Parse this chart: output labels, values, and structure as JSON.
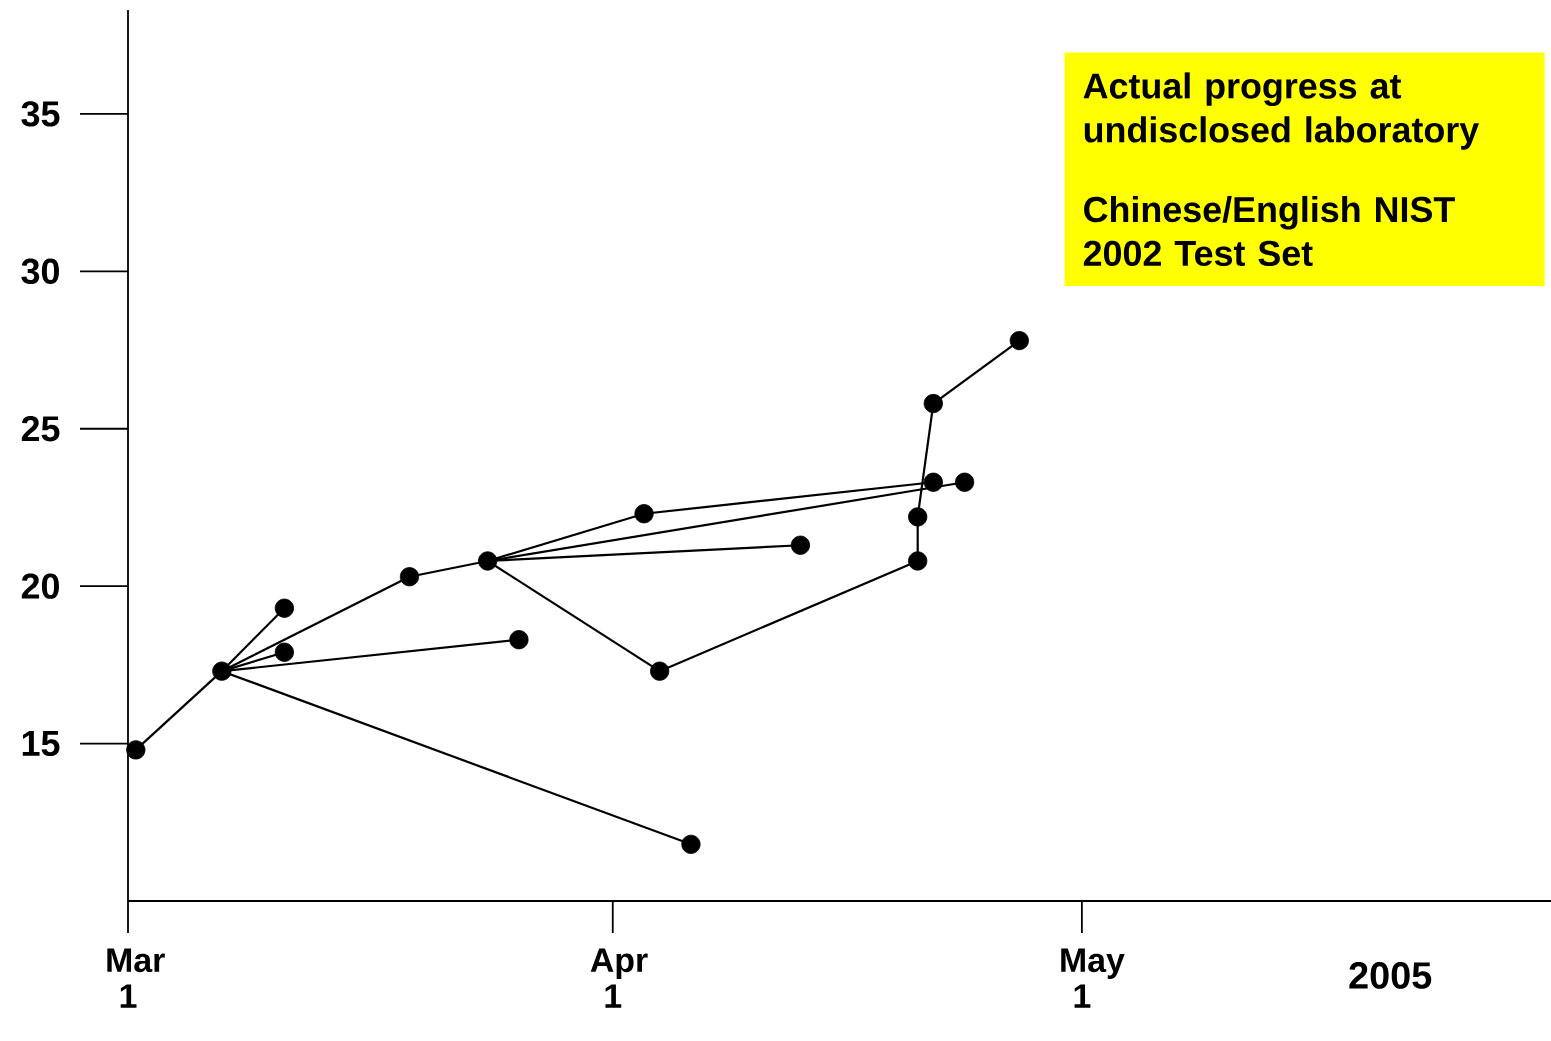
{
  "chart_data": {
    "type": "line",
    "xlabel": "2005",
    "annotations": [
      "Actual progress at undisclosed laboratory",
      "Chinese/English NIST 2002 Test Set"
    ],
    "xlim": [
      "2005-03-01",
      "2005-05-31"
    ],
    "ylim": [
      10,
      38.3
    ],
    "yticks": [
      15,
      20,
      25,
      30,
      35
    ],
    "xticks": [
      {
        "value": "2005-03-01",
        "label": "Mar 1"
      },
      {
        "value": "2005-04-01",
        "label": "Apr 1"
      },
      {
        "value": "2005-05-01",
        "label": "May 1"
      }
    ],
    "series": [
      {
        "type": "scatter",
        "marker": "circle",
        "color": "#000000",
        "x": [
          "2005-03-01T12:00",
          "2005-03-07",
          "2005-03-11",
          "2005-03-11",
          "2005-03-19",
          "2005-03-24",
          "2005-03-26",
          "2005-04-06",
          "2005-04-03",
          "2005-04-04",
          "2005-04-13",
          "2005-04-20T12:00",
          "2005-04-20T12:00",
          "2005-04-21T12:00",
          "2005-04-21T12:00",
          "2005-04-23T12:00",
          "2005-04-27"
        ],
        "values": [
          14.8,
          17.3,
          19.3,
          17.9,
          20.3,
          20.8,
          18.3,
          11.8,
          22.3,
          17.3,
          21.3,
          20.8,
          22.2,
          23.3,
          25.8,
          23.3,
          27.8
        ]
      },
      {
        "marker": "none",
        "color": "#000000",
        "x": [
          "2005-03-01T12:00",
          "2005-03-07"
        ],
        "values": [
          14.8,
          17.3
        ]
      },
      {
        "type": "line",
        "marker": "none",
        "color": "#000000",
        "x": [
          "2005-03-07",
          "2005-03-11"
        ],
        "values": [
          17.3,
          19.3
        ]
      },
      {
        "type": "line",
        "marker": "none",
        "color": "#000000",
        "x": [
          "2005-03-07",
          "2005-03-11"
        ],
        "values": [
          17.3,
          17.9
        ]
      },
      {
        "type": "line",
        "marker": "none",
        "color": "#000000",
        "x": [
          "2005-03-07",
          "2005-03-19"
        ],
        "values": [
          17.3,
          20.3
        ]
      },
      {
        "type": "line",
        "marker": "none",
        "color": "#000000",
        "x": [
          "2005-03-07",
          "2005-03-26"
        ],
        "values": [
          17.3,
          18.3
        ]
      },
      {
        "type": "line",
        "marker": "none",
        "color": "#000000",
        "x": [
          "2005-03-07",
          "2005-04-06"
        ],
        "values": [
          17.3,
          11.8
        ]
      },
      {
        "type": "line",
        "marker": "none",
        "color": "#000000",
        "x": [
          "2005-03-19",
          "2005-03-24"
        ],
        "values": [
          20.3,
          20.8
        ]
      },
      {
        "type": "line",
        "marker": "none",
        "color": "#000000",
        "x": [
          "2005-03-24",
          "2005-04-03"
        ],
        "values": [
          20.8,
          22.3
        ]
      },
      {
        "type": "line",
        "marker": "none",
        "color": "#000000",
        "x": [
          "2005-04-03",
          "2005-04-21T12:00"
        ],
        "values": [
          22.3,
          23.3
        ]
      },
      {
        "type": "line",
        "marker": "none",
        "color": "#000000",
        "x": [
          "2005-03-24",
          "2005-04-23T12:00"
        ],
        "values": [
          20.8,
          23.3
        ]
      },
      {
        "type": "line",
        "marker": "none",
        "color": "#000000",
        "x": [
          "2005-03-24",
          "2005-04-13"
        ],
        "values": [
          20.8,
          21.3
        ]
      },
      {
        "type": "line",
        "marker": "none",
        "color": "#000000",
        "x": [
          "2005-03-24",
          "2005-04-04"
        ],
        "values": [
          20.8,
          17.3
        ]
      },
      {
        "type": "line",
        "marker": "none",
        "color": "#000000",
        "x": [
          "2005-04-04",
          "2005-04-20T12:00"
        ],
        "values": [
          17.3,
          20.8
        ]
      },
      {
        "type": "line",
        "marker": "none",
        "color": "#000000",
        "x": [
          "2005-04-20T12:00",
          "2005-04-20T12:00"
        ],
        "values": [
          20.8,
          22.2
        ]
      },
      {
        "type": "line",
        "marker": "none",
        "color": "#000000",
        "x": [
          "2005-04-20T12:00",
          "2005-04-21T12:00"
        ],
        "values": [
          22.2,
          25.8
        ]
      },
      {
        "type": "line",
        "marker": "none",
        "color": "#000000",
        "x": [
          "2005-04-21T12:00",
          "2005-04-27"
        ],
        "values": [
          25.8,
          27.8
        ]
      }
    ]
  }
}
